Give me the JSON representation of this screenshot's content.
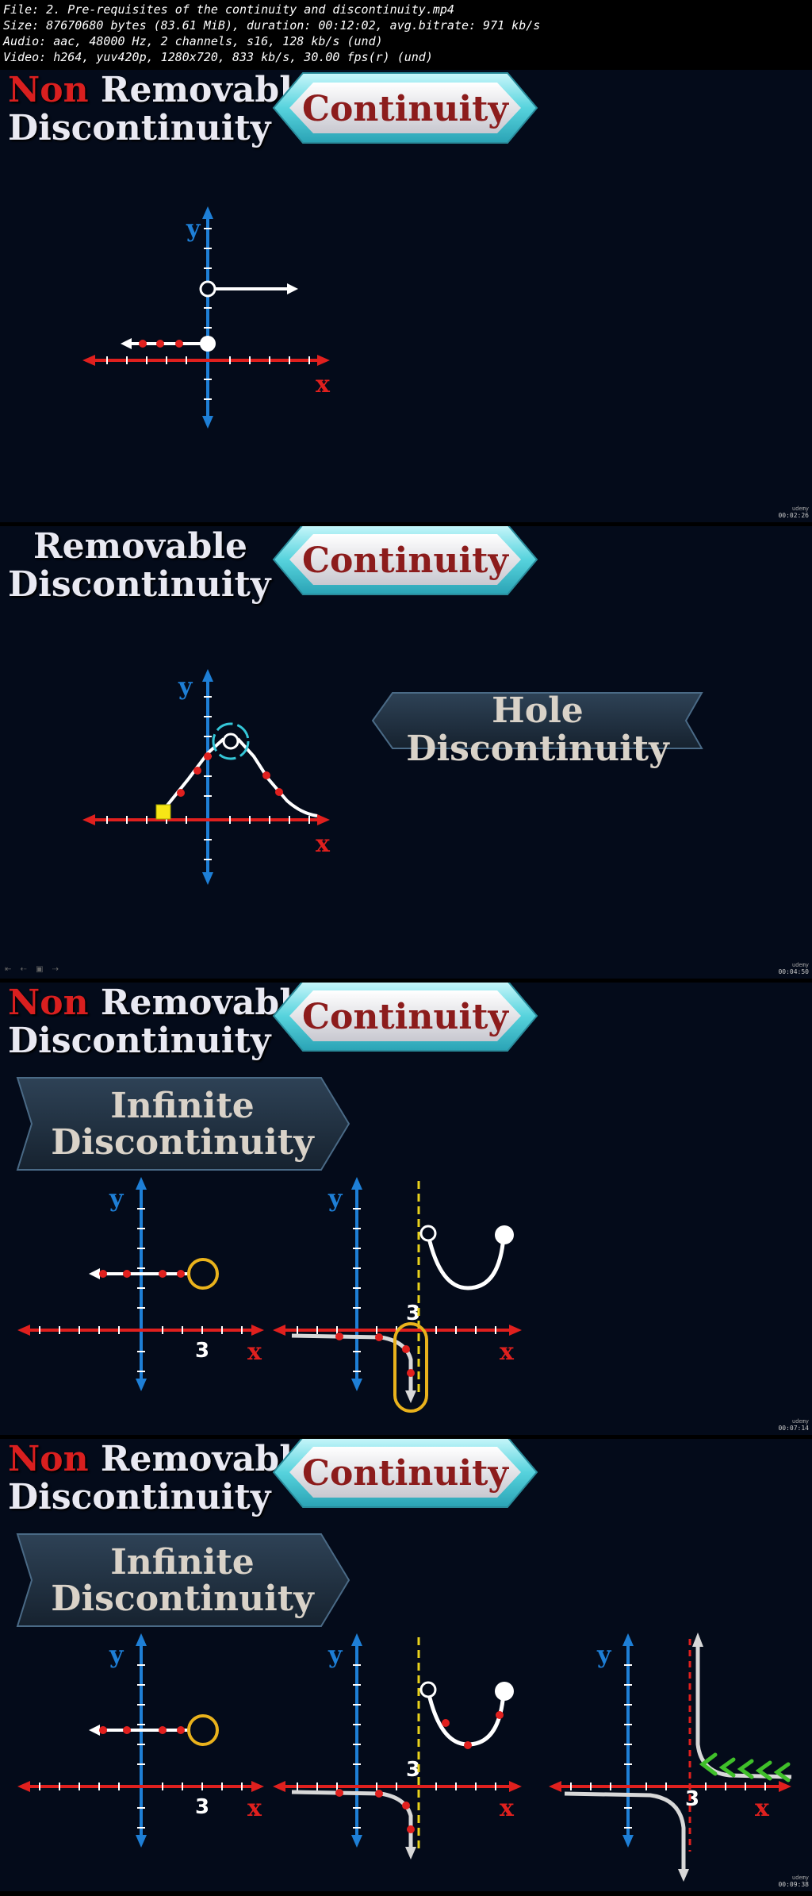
{
  "file_info": [
    "File: 2. Pre-requisites of the continuity and discontinuity.mp4",
    "Size: 87670680 bytes (83.61 MiB), duration: 00:12:02, avg.bitrate: 971 kb/s",
    "Audio: aac, 48000 Hz, 2 channels, s16, 128 kb/s (und)",
    "Video: h264, yuv420p, 1280x720, 833 kb/s, 30.00 fps(r) (und)"
  ],
  "frames": [
    {
      "title_prefix": "Non",
      "title_line1": "Removable",
      "title_line2": "Discontinuity",
      "badge": "Continuity",
      "axis_y": "y",
      "axis_x": "x",
      "timestamp": "00:02:26",
      "watermark": "udemy"
    },
    {
      "title_line1": "Removable",
      "title_line2": "Discontinuity",
      "badge": "Continuity",
      "callout_line1": "Hole",
      "callout_line2": "Discontinuity",
      "axis_y": "y",
      "axis_x": "x",
      "timestamp": "00:04:50",
      "watermark": "udemy",
      "nav": "⇤ ⇠ ▣ ⇢"
    },
    {
      "title_prefix": "Non",
      "title_line1": "Removable",
      "title_line2": "Discontinuity",
      "badge": "Continuity",
      "callout_line1": "Infinite",
      "callout_line2": "Discontinuity",
      "axis_y": "y",
      "axis_x": "x",
      "tick_label": "3",
      "timestamp": "00:07:14",
      "watermark": "udemy"
    },
    {
      "title_prefix": "Non",
      "title_line1": "Removable",
      "title_line2": "Discontinuity",
      "badge": "Continuity",
      "callout_line1": "Infinite",
      "callout_line2": "Discontinuity",
      "axis_y": "y",
      "axis_x": "x",
      "tick_label": "3",
      "timestamp": "00:09:38",
      "watermark": "udemy"
    }
  ],
  "colors": {
    "frame_bg": "#040b1a",
    "red": "#e0201e",
    "blue": "#1e7fd6",
    "yellow": "#e9b21c",
    "green": "#3fbf2a",
    "badge_cyan": "#57d3dd",
    "badge_text": "#8c1c1c"
  },
  "icons": [
    "arrow-icon",
    "open-circle-icon",
    "filled-dot-icon",
    "yellow-square-icon",
    "udemy-logo-icon"
  ]
}
